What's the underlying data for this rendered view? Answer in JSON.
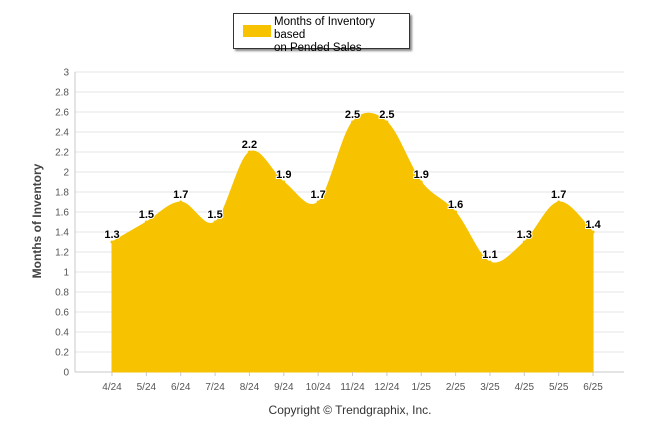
{
  "legend": {
    "label_line1": "Months of Inventory based",
    "label_line2": "on Pended Sales"
  },
  "copyright": "Copyright © Trendgraphix, Inc.",
  "colors": {
    "fill": "#f7c200",
    "grid": "#e4e4e4",
    "axis_text": "#555555",
    "label_text": "#000000"
  },
  "chart_data": {
    "type": "area",
    "title": "",
    "xlabel": "",
    "ylabel": "Months of Inventory",
    "ylim": [
      0,
      3
    ],
    "yticks": [
      "0",
      "0.2",
      "0.4",
      "0.6",
      "0.8",
      "1",
      "1.2",
      "1.4",
      "1.6",
      "1.8",
      "2",
      "2.2",
      "2.4",
      "2.6",
      "2.8",
      "3"
    ],
    "categories": [
      "4/24",
      "5/24",
      "6/24",
      "7/24",
      "8/24",
      "9/24",
      "10/24",
      "11/24",
      "12/24",
      "1/25",
      "2/25",
      "3/25",
      "4/25",
      "5/25",
      "6/25"
    ],
    "series": [
      {
        "name": "Months of Inventory based on Pended Sales",
        "values": [
          1.3,
          1.5,
          1.7,
          1.5,
          2.2,
          1.9,
          1.7,
          2.5,
          2.5,
          1.9,
          1.6,
          1.1,
          1.3,
          1.7,
          1.4
        ],
        "data_labels": [
          "1.3",
          "1.5",
          "1.7",
          "1.5",
          "2.2",
          "1.9",
          "1.7",
          "2.5",
          "2.5",
          "1.9",
          "1.6",
          "1.1",
          "1.3",
          "1.7",
          "1.4"
        ]
      }
    ],
    "grid": true,
    "legend_position": "top-center"
  }
}
